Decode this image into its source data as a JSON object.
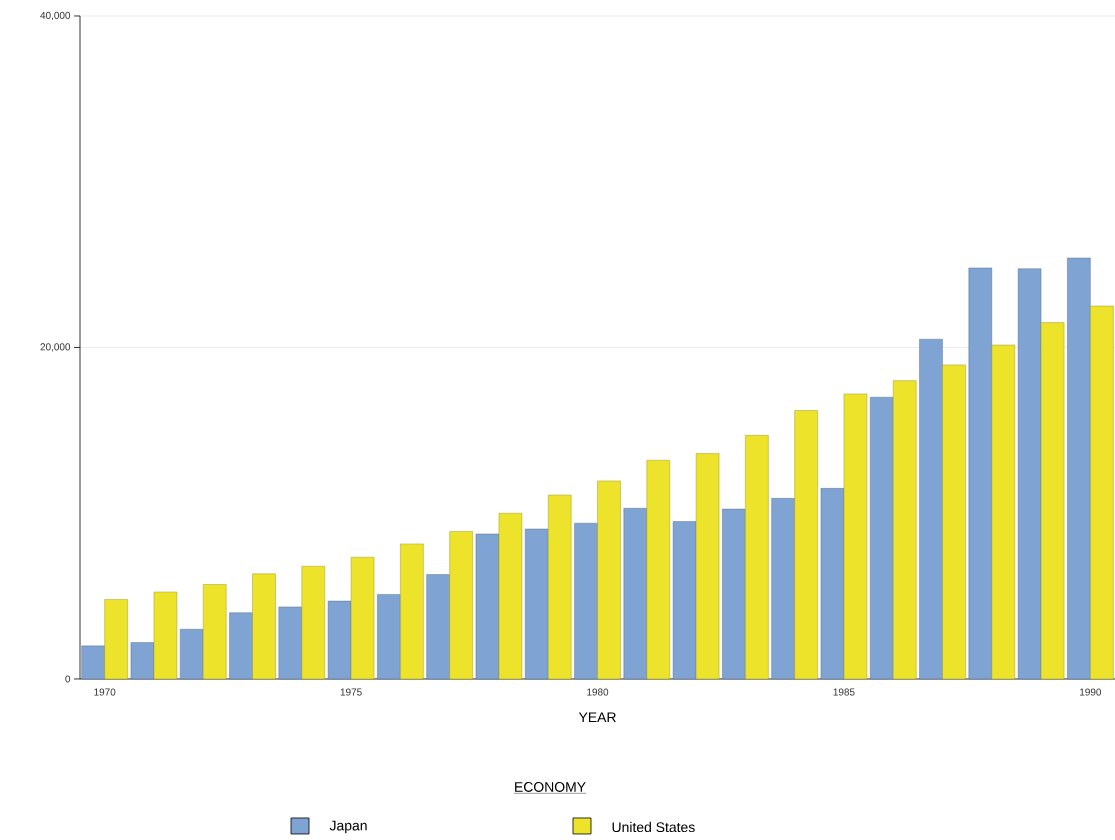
{
  "chart_data": {
    "type": "bar",
    "categories": [
      "1970",
      null,
      null,
      null,
      null,
      "1975",
      null,
      null,
      null,
      null,
      "1980",
      null,
      null,
      null,
      null,
      "1985",
      null,
      null,
      null,
      null,
      "1990"
    ],
    "series": [
      {
        "name": "Japan",
        "color": "#7fa3d3",
        "values": [
          2000,
          2200,
          3000,
          4000,
          4350,
          4700,
          5100,
          6300,
          8750,
          9050,
          9400,
          10300,
          9500,
          10250,
          10900,
          11500,
          17000,
          20500,
          24800,
          24750,
          25400
        ]
      },
      {
        "name": "United States",
        "color": "#ece32a",
        "values": [
          4800,
          5250,
          5700,
          6350,
          6800,
          7350,
          8150,
          8900,
          10000,
          11100,
          11950,
          13200,
          13600,
          14700,
          16200,
          17200,
          18000,
          18950,
          20150,
          21500,
          22500
        ]
      }
    ],
    "xlabel": "YEAR",
    "legend_title": "ECONOMY",
    "legend": "bottom",
    "ylim": [
      0,
      40000
    ],
    "yticks": [
      {
        "value": 0,
        "label": "0"
      },
      {
        "value": 20000,
        "label": "20,000"
      },
      {
        "value": 40000,
        "label": "40,000"
      }
    ],
    "grid": "y"
  }
}
